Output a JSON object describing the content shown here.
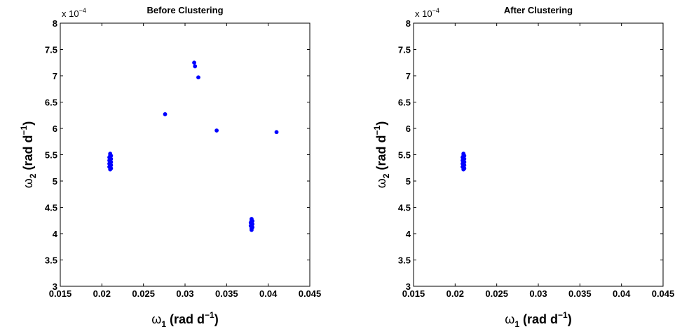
{
  "chart_data": [
    {
      "type": "scatter",
      "title": "Before Clustering",
      "xlabel": {
        "base": "ω",
        "sub": "1",
        "unit": "(rad d",
        "sup": "−1",
        "close": ")"
      },
      "ylabel": {
        "base": "ω",
        "sub": "2",
        "unit": "(rad d",
        "sup": "−1",
        "close": ")"
      },
      "xlim": [
        0.015,
        0.045
      ],
      "ylim": [
        3.0,
        8.0
      ],
      "y_multiplier": {
        "base": "x 10",
        "exp": "−4"
      },
      "xticks": [
        "0.015",
        "0.02",
        "0.025",
        "0.03",
        "0.035",
        "0.04",
        "0.045"
      ],
      "yticks": [
        "3",
        "3.5",
        "4",
        "4.5",
        "5",
        "5.5",
        "6",
        "6.5",
        "7",
        "7.5",
        "8"
      ],
      "grid": false,
      "color": "#0000ff",
      "points": [
        [
          0.021,
          5.22
        ],
        [
          0.021,
          5.25
        ],
        [
          0.021,
          5.28
        ],
        [
          0.021,
          5.31
        ],
        [
          0.021,
          5.34
        ],
        [
          0.021,
          5.37
        ],
        [
          0.021,
          5.4
        ],
        [
          0.021,
          5.43
        ],
        [
          0.021,
          5.46
        ],
        [
          0.021,
          5.49
        ],
        [
          0.021,
          5.52
        ],
        [
          0.0211,
          5.24
        ],
        [
          0.0211,
          5.3
        ],
        [
          0.0211,
          5.36
        ],
        [
          0.0211,
          5.42
        ],
        [
          0.0211,
          5.48
        ],
        [
          0.0209,
          5.27
        ],
        [
          0.0209,
          5.33
        ],
        [
          0.0209,
          5.39
        ],
        [
          0.0209,
          5.45
        ],
        [
          0.038,
          4.07
        ],
        [
          0.038,
          4.1
        ],
        [
          0.038,
          4.13
        ],
        [
          0.038,
          4.16
        ],
        [
          0.038,
          4.19
        ],
        [
          0.038,
          4.22
        ],
        [
          0.038,
          4.25
        ],
        [
          0.038,
          4.28
        ],
        [
          0.0381,
          4.12
        ],
        [
          0.0381,
          4.18
        ],
        [
          0.0381,
          4.24
        ],
        [
          0.0379,
          4.15
        ],
        [
          0.0379,
          4.21
        ],
        [
          0.0311,
          7.25
        ],
        [
          0.0312,
          7.18
        ],
        [
          0.0316,
          6.97
        ],
        [
          0.0276,
          6.27
        ],
        [
          0.0338,
          5.96
        ],
        [
          0.041,
          5.93
        ]
      ]
    },
    {
      "type": "scatter",
      "title": "After Clustering",
      "xlabel": {
        "base": "ω",
        "sub": "1",
        "unit": "(rad d",
        "sup": "−1",
        "close": ")"
      },
      "ylabel": {
        "base": "ω",
        "sub": "2",
        "unit": "(rad d",
        "sup": "−1",
        "close": ")"
      },
      "xlim": [
        0.015,
        0.045
      ],
      "ylim": [
        3.0,
        8.0
      ],
      "y_multiplier": {
        "base": "x 10",
        "exp": "−4"
      },
      "xticks": [
        "0.015",
        "0.02",
        "0.025",
        "0.03",
        "0.035",
        "0.04",
        "0.045"
      ],
      "yticks": [
        "3",
        "3.5",
        "4",
        "4.5",
        "5",
        "5.5",
        "6",
        "6.5",
        "7",
        "7.5",
        "8"
      ],
      "grid": false,
      "color": "#0000ff",
      "points": [
        [
          0.021,
          5.22
        ],
        [
          0.021,
          5.25
        ],
        [
          0.021,
          5.28
        ],
        [
          0.021,
          5.31
        ],
        [
          0.021,
          5.34
        ],
        [
          0.021,
          5.37
        ],
        [
          0.021,
          5.4
        ],
        [
          0.021,
          5.43
        ],
        [
          0.021,
          5.46
        ],
        [
          0.021,
          5.49
        ],
        [
          0.021,
          5.52
        ],
        [
          0.0211,
          5.24
        ],
        [
          0.0211,
          5.3
        ],
        [
          0.0211,
          5.36
        ],
        [
          0.0211,
          5.42
        ],
        [
          0.0211,
          5.48
        ],
        [
          0.0209,
          5.27
        ],
        [
          0.0209,
          5.33
        ],
        [
          0.0209,
          5.39
        ],
        [
          0.0209,
          5.45
        ]
      ]
    }
  ]
}
